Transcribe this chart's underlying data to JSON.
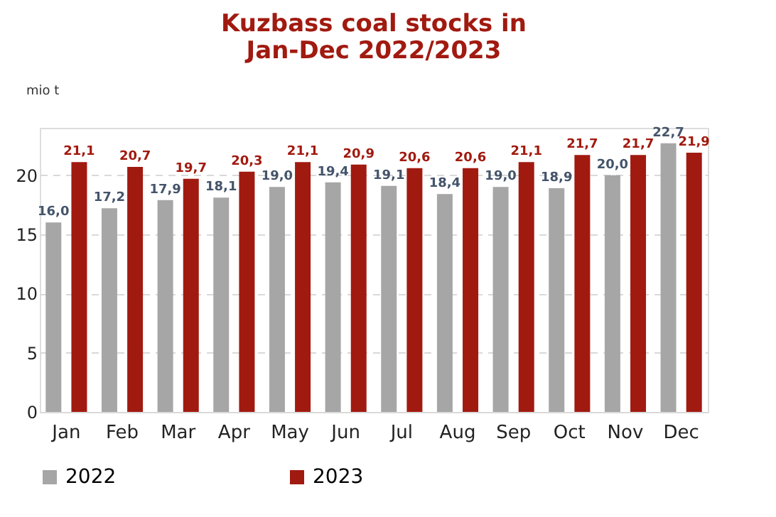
{
  "chart_data": {
    "type": "bar",
    "title": "Kuzbass coal stocks in\nJan-Dec 2022/2023",
    "ylabel": "mio t",
    "categories": [
      "Jan",
      "Feb",
      "Mar",
      "Apr",
      "May",
      "Jun",
      "Jul",
      "Aug",
      "Sep",
      "Oct",
      "Nov",
      "Dec"
    ],
    "series": [
      {
        "name": "2022",
        "color": "#a6a6a6",
        "values": [
          16.0,
          17.2,
          17.9,
          18.1,
          19.0,
          19.4,
          19.1,
          18.4,
          19.0,
          18.9,
          20.0,
          22.7
        ],
        "value_labels": [
          "16,0",
          "17,2",
          "17,9",
          "18,1",
          "19,0",
          "19,4",
          "19,1",
          "18,4",
          "19,0",
          "18,9",
          "20,0",
          "22,7"
        ]
      },
      {
        "name": "2023",
        "color": "#a11a10",
        "values": [
          21.1,
          20.7,
          19.7,
          20.3,
          21.1,
          20.9,
          20.6,
          20.6,
          21.1,
          21.7,
          21.7,
          21.9
        ],
        "value_labels": [
          "21,1",
          "20,7",
          "19,7",
          "20,3",
          "21,1",
          "20,9",
          "20,6",
          "20,6",
          "21,1",
          "21,7",
          "21,7",
          "21,9"
        ]
      }
    ],
    "ylim": [
      0,
      24
    ],
    "yticks": [
      0,
      5,
      10,
      15,
      20
    ],
    "grid": "y",
    "legend": "bottom"
  }
}
